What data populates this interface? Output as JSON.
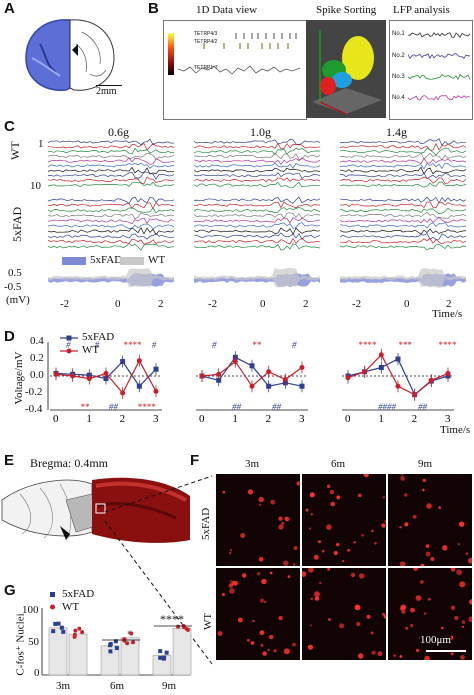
{
  "panel_labels": {
    "a": "A",
    "b": "B",
    "c": "C",
    "d": "D",
    "e": "E",
    "f": "F",
    "g": "G"
  },
  "panel_a": {
    "scalebar": "2mm"
  },
  "panel_b": {
    "titles": [
      "1D Data view",
      "Spike Sorting",
      "LFP analysis"
    ],
    "tet_labels": [
      "TETRP4/3",
      "TETRP4/2",
      "TETRP1-7"
    ],
    "lfp_rows": [
      "No.1",
      "No.2",
      "No.3",
      "No.4"
    ],
    "lfp_colors": [
      "#2a2a2a",
      "#3a3a9a",
      "#2a8a3a",
      "#b03aa0"
    ]
  },
  "panel_c": {
    "conditions": [
      "0.6g",
      "1.0g",
      "1.4g"
    ],
    "row_labels": {
      "wt": "WT",
      "fad": "5xFAD"
    },
    "y_ticks_top": [
      "1",
      "10"
    ],
    "legend": {
      "fad": "5xFAD",
      "wt": "WT"
    },
    "y_ticks_bottom": [
      "0.5",
      "-0.5"
    ],
    "y_unit": "(mV)",
    "x_ticks": [
      "-2",
      "0",
      "2"
    ],
    "time_label": "Time/s"
  },
  "panel_d": {
    "ylabel": "Voltage/mV",
    "y_ticks": [
      "0.4",
      "0.2",
      "0.0",
      "-0.2",
      "-0.4"
    ],
    "x_ticks": [
      "0",
      "1",
      "2",
      "3"
    ],
    "legend": {
      "fad": "5xFAD",
      "wt": "WT"
    },
    "time_label": "Time/s",
    "colors": {
      "fad": "#2d3f8e",
      "wt": "#c8202a"
    },
    "annotations_1": [
      "#",
      "**",
      "#",
      "##",
      "****",
      "****",
      "#"
    ],
    "annotations_2": [
      "#",
      "##",
      "**",
      "##",
      "#"
    ],
    "annotations_3": [
      "****",
      "####",
      "***",
      "##",
      "****"
    ]
  },
  "panel_e": {
    "bregma": "Bregma: 0.4mm"
  },
  "panel_f": {
    "cols": [
      "3m",
      "6m",
      "9m"
    ],
    "rows": [
      "5xFAD",
      "WT"
    ],
    "scalebar": "100μm"
  },
  "panel_g": {
    "ylabel": "C-fos⁺ Nuclei",
    "y_ticks": [
      "100",
      "50",
      "0"
    ],
    "legend": {
      "fad": "5xFAD",
      "wt": "WT"
    },
    "sig": [
      "*",
      "****"
    ]
  },
  "chart_data": [
    {
      "type": "line",
      "x": [
        0,
        0.5,
        1,
        1.5,
        2,
        2.5,
        3
      ],
      "xlabel": "Time/s",
      "ylabel": "Voltage/mV",
      "ylim": [
        -0.4,
        0.4
      ],
      "series": [
        {
          "name": "5xFAD",
          "values": [
            0.03,
            0.02,
            0.01,
            -0.03,
            0.17,
            -0.12,
            0.08
          ]
        },
        {
          "name": "WT",
          "values": [
            0.02,
            0.0,
            -0.03,
            0.03,
            -0.2,
            0.18,
            -0.18
          ]
        }
      ]
    },
    {
      "type": "line",
      "x": [
        0,
        0.5,
        1,
        1.5,
        2,
        2.5,
        3
      ],
      "xlabel": "Time/s",
      "ylabel": "Voltage/mV",
      "ylim": [
        -0.4,
        0.4
      ],
      "series": [
        {
          "name": "5xFAD",
          "values": [
            0.0,
            -0.05,
            0.22,
            0.12,
            -0.12,
            -0.08,
            -0.12
          ]
        },
        {
          "name": "WT",
          "values": [
            0.0,
            0.02,
            0.17,
            -0.12,
            0.05,
            -0.04,
            0.1
          ]
        }
      ]
    },
    {
      "type": "line",
      "x": [
        0,
        0.5,
        1,
        1.5,
        2,
        2.5,
        3
      ],
      "xlabel": "Time/s",
      "ylabel": "Voltage/mV",
      "ylim": [
        -0.4,
        0.4
      ],
      "series": [
        {
          "name": "5xFAD",
          "values": [
            0.0,
            0.05,
            0.1,
            0.2,
            -0.22,
            -0.06,
            0.0
          ]
        },
        {
          "name": "WT",
          "values": [
            -0.02,
            0.05,
            0.25,
            -0.12,
            -0.22,
            -0.05,
            0.03
          ]
        }
      ]
    },
    {
      "type": "bar",
      "categories": [
        "3m",
        "6m",
        "9m"
      ],
      "ylabel": "C-fos⁺ Nuclei",
      "ylim": [
        0,
        100
      ],
      "series": [
        {
          "name": "5xFAD",
          "values": [
            76,
            47,
            32
          ]
        },
        {
          "name": "WT",
          "values": [
            66,
            60,
            75
          ]
        }
      ]
    }
  ]
}
